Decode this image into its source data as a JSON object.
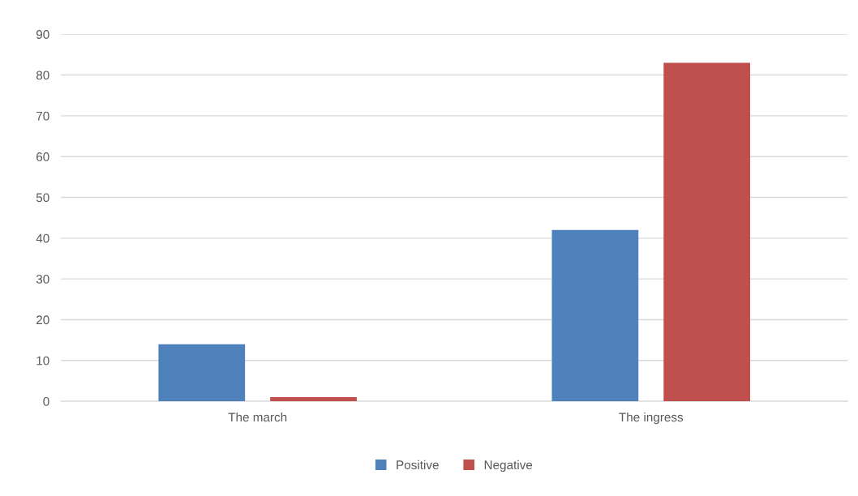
{
  "chart_data": {
    "type": "bar",
    "categories": [
      "The march",
      "The ingress"
    ],
    "series": [
      {
        "name": "Positive",
        "color": "#4f81bd",
        "values": [
          14,
          42
        ]
      },
      {
        "name": "Negative",
        "color": "#c0504d",
        "values": [
          1,
          83
        ]
      }
    ],
    "ylim": [
      0,
      90
    ],
    "yticks": [
      0,
      10,
      20,
      30,
      40,
      50,
      60,
      70,
      80,
      90
    ],
    "grid": "y",
    "legend": "bottom"
  }
}
